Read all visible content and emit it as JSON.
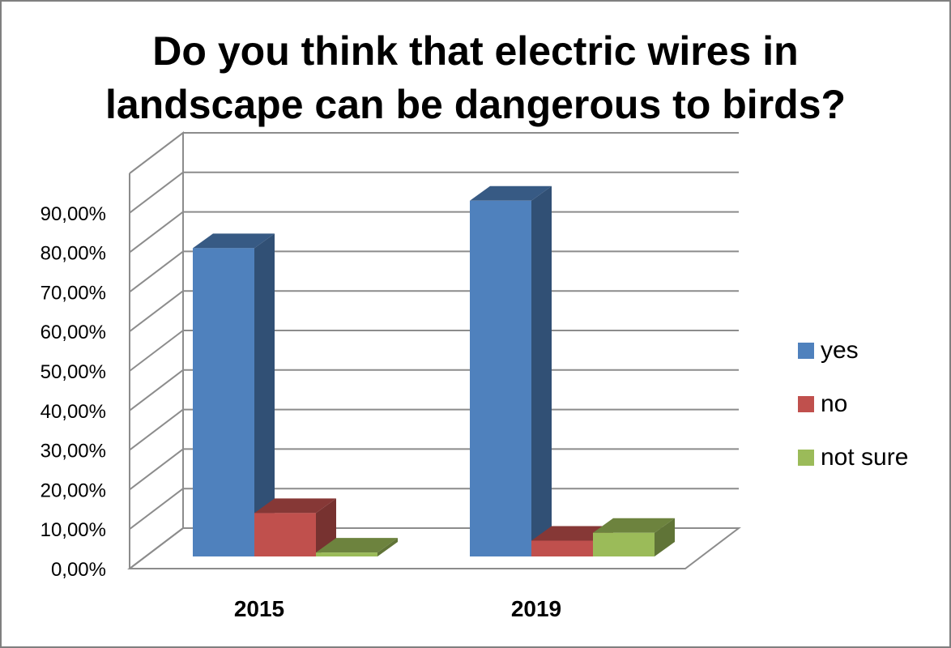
{
  "chart_data": {
    "type": "bar",
    "title_lines": [
      "Do you think that electric wires in",
      "landscape can be dangerous to birds?"
    ],
    "categories": [
      "2015",
      "2019"
    ],
    "series": [
      {
        "name": "yes",
        "values": [
          78.0,
          90.0
        ],
        "color": "#4F81BD"
      },
      {
        "name": "no",
        "values": [
          11.0,
          4.0
        ],
        "color": "#C0504D"
      },
      {
        "name": "not sure",
        "values": [
          1.0,
          6.0
        ],
        "color": "#9BBB59"
      }
    ],
    "ylim": [
      0,
      90
    ],
    "ytick_labels": [
      "0,00%",
      "10,00%",
      "20,00%",
      "30,00%",
      "40,00%",
      "50,00%",
      "60,00%",
      "70,00%",
      "80,00%",
      "90,00%"
    ],
    "grid": true,
    "style": "3d-clustered-column",
    "legend_position": "right"
  }
}
